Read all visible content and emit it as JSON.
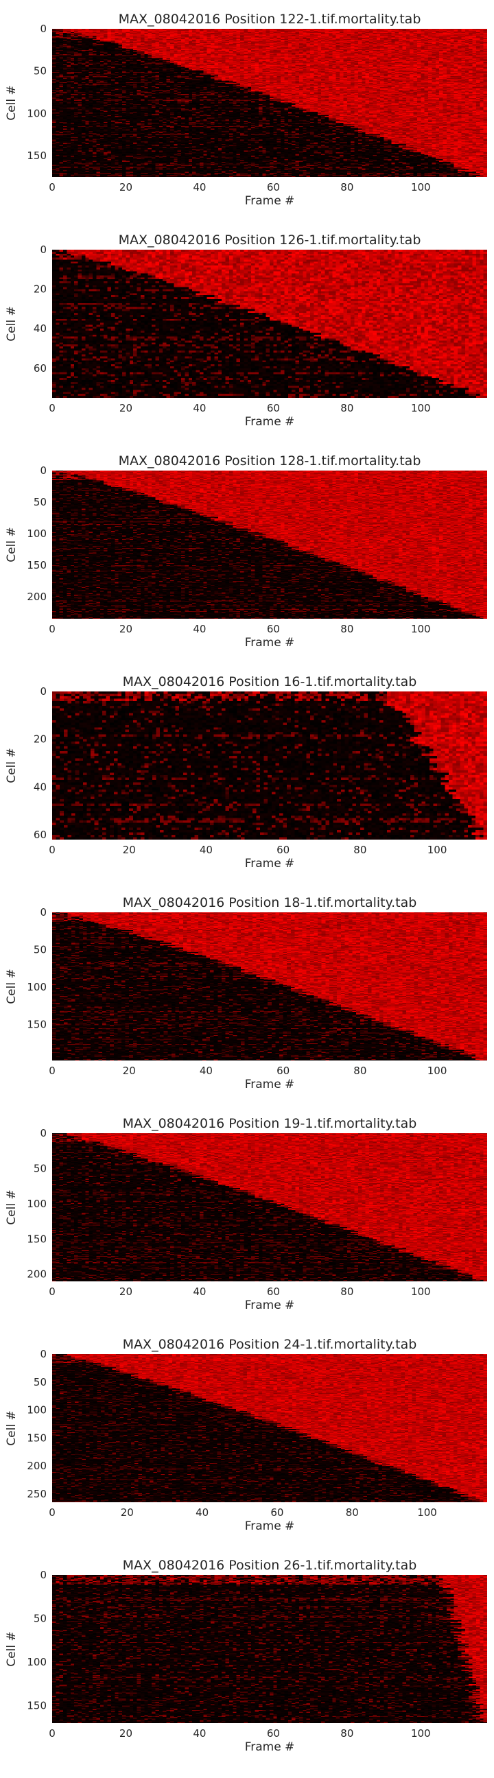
{
  "colors": {
    "background": "#000000",
    "signal": "#ff0000",
    "text": "#262626"
  },
  "chart_data": [
    {
      "type": "heatmap",
      "title": "MAX_08042016 Position 122-1.tif.mortality.tab",
      "xlabel": "Frame #",
      "ylabel": "Cell #",
      "n_rows": 175,
      "n_cols": 118,
      "xticks": [
        0,
        20,
        40,
        60,
        80,
        100
      ],
      "yticks": [
        0,
        50,
        100,
        150
      ],
      "onset_start": 2,
      "onset_end": 116,
      "colormap": [
        "#000000",
        "#ff0000"
      ]
    },
    {
      "type": "heatmap",
      "title": "MAX_08042016 Position 126-1.tif.mortality.tab",
      "xlabel": "Frame #",
      "ylabel": "Cell #",
      "n_rows": 75,
      "n_cols": 118,
      "xticks": [
        0,
        20,
        40,
        60,
        80,
        100
      ],
      "yticks": [
        0,
        20,
        40,
        60
      ],
      "onset_start": 2,
      "onset_end": 116,
      "colormap": [
        "#000000",
        "#ff0000"
      ]
    },
    {
      "type": "heatmap",
      "title": "MAX_08042016 Position 128-1.tif.mortality.tab",
      "xlabel": "Frame #",
      "ylabel": "Cell #",
      "n_rows": 235,
      "n_cols": 118,
      "xticks": [
        0,
        20,
        40,
        60,
        80,
        100
      ],
      "yticks": [
        0,
        50,
        100,
        150,
        200
      ],
      "onset_start": 2,
      "onset_end": 116,
      "colormap": [
        "#000000",
        "#ff0000"
      ]
    },
    {
      "type": "heatmap",
      "title": "MAX_08042016 Position 16-1.tif.mortality.tab",
      "xlabel": "Frame #",
      "ylabel": "Cell #",
      "n_rows": 62,
      "n_cols": 113,
      "xticks": [
        0,
        20,
        40,
        60,
        80,
        100
      ],
      "yticks": [
        0,
        20,
        40,
        60
      ],
      "onset_start": 85,
      "onset_end": 111,
      "colormap": [
        "#000000",
        "#ff0000"
      ]
    },
    {
      "type": "heatmap",
      "title": "MAX_08042016 Position 18-1.tif.mortality.tab",
      "xlabel": "Frame #",
      "ylabel": "Cell #",
      "n_rows": 198,
      "n_cols": 113,
      "xticks": [
        0,
        20,
        40,
        60,
        80,
        100
      ],
      "yticks": [
        0,
        50,
        100,
        150
      ],
      "onset_start": 2,
      "onset_end": 111,
      "colormap": [
        "#000000",
        "#ff0000"
      ]
    },
    {
      "type": "heatmap",
      "title": "MAX_08042016 Position 19-1.tif.mortality.tab",
      "xlabel": "Frame #",
      "ylabel": "Cell #",
      "n_rows": 210,
      "n_cols": 118,
      "xticks": [
        0,
        20,
        40,
        60,
        80,
        100
      ],
      "yticks": [
        0,
        50,
        100,
        150,
        200
      ],
      "onset_start": 2,
      "onset_end": 116,
      "colormap": [
        "#000000",
        "#ff0000"
      ]
    },
    {
      "type": "heatmap",
      "title": "MAX_08042016 Position 24-1.tif.mortality.tab",
      "xlabel": "Frame #",
      "ylabel": "Cell #",
      "n_rows": 265,
      "n_cols": 116,
      "xticks": [
        0,
        20,
        40,
        60,
        80,
        100
      ],
      "yticks": [
        0,
        50,
        100,
        150,
        200,
        250
      ],
      "onset_start": 2,
      "onset_end": 114,
      "colormap": [
        "#000000",
        "#ff0000"
      ]
    },
    {
      "type": "heatmap",
      "title": "MAX_08042016 Position 26-1.tif.mortality.tab",
      "xlabel": "Frame #",
      "ylabel": "Cell #",
      "n_rows": 170,
      "n_cols": 118,
      "xticks": [
        0,
        20,
        40,
        60,
        80,
        100
      ],
      "yticks": [
        0,
        50,
        100,
        150
      ],
      "onset_start": 105,
      "onset_end": 116,
      "colormap": [
        "#000000",
        "#ff0000"
      ]
    }
  ]
}
